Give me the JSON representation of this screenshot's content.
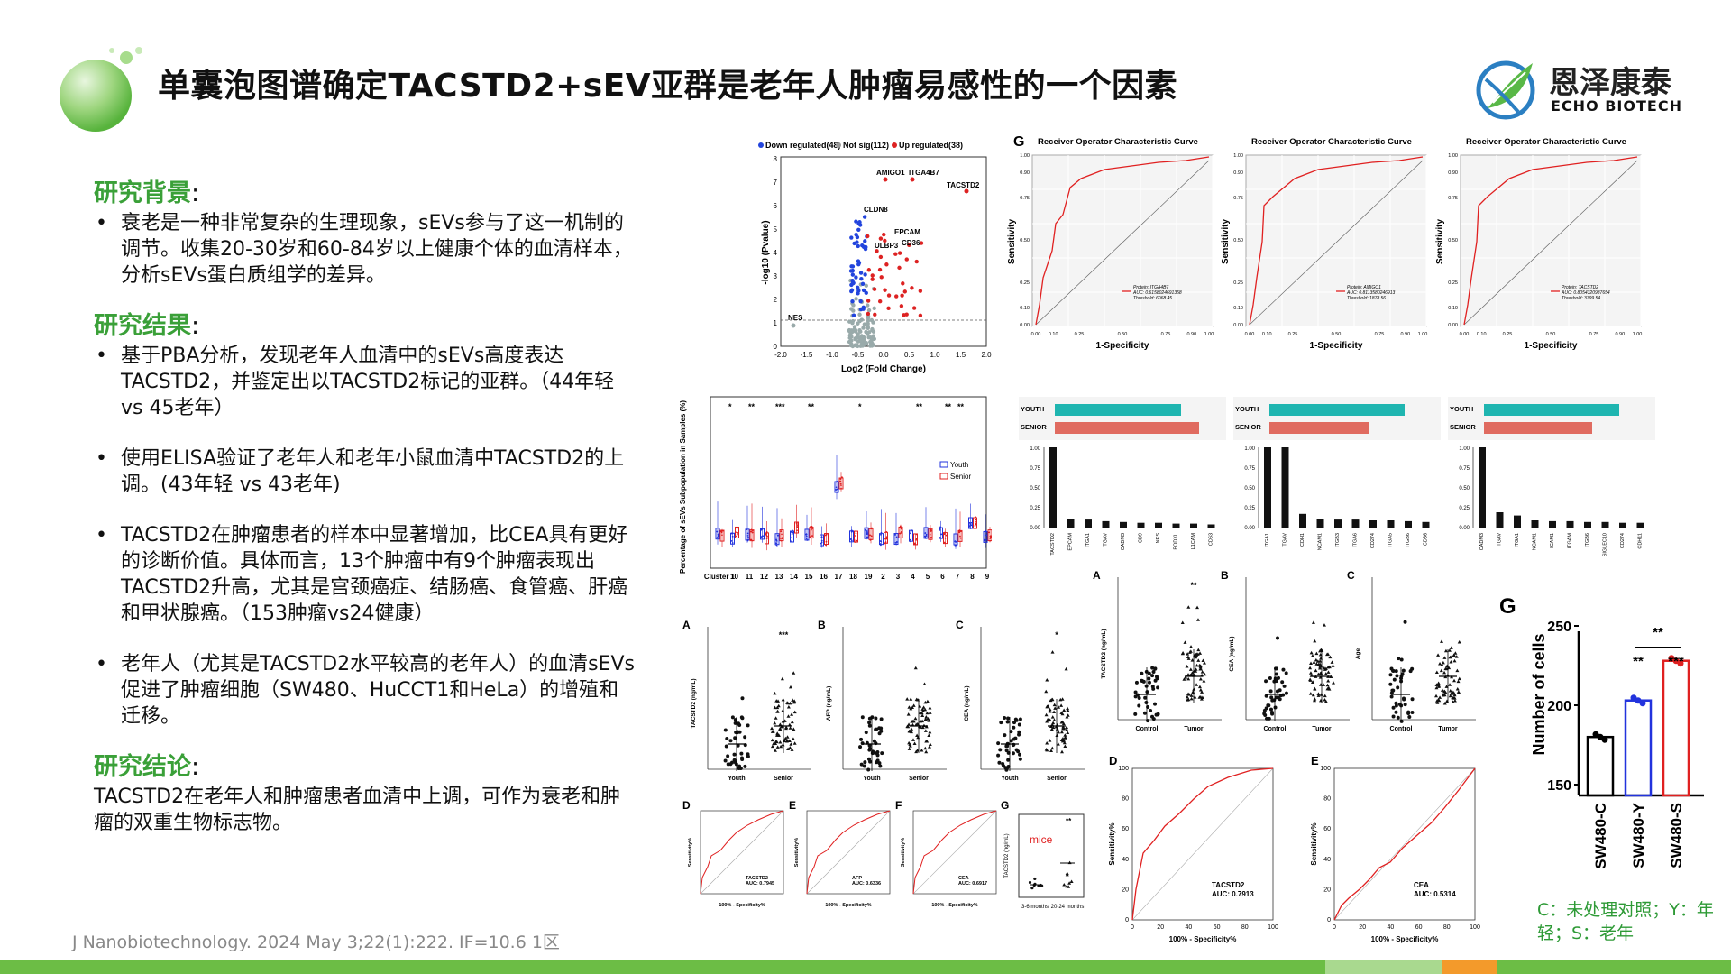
{
  "title": "单囊泡图谱确定TACSTD2+sEV亚群是老年人肿瘤易感性的一个因素",
  "brand": {
    "cn": "恩泽康泰",
    "en": "ECHO BIOTECH"
  },
  "sections": [
    {
      "heading": "研究背景",
      "colon": ":",
      "items": [
        "衰老是一种非常复杂的生理现象，sEVs参与了这一机制的调节。收集20-30岁和60-84岁以上健康个体的血清样本，分析sEVs蛋白质组学的差异。"
      ]
    },
    {
      "heading": "研究结果",
      "colon": ":",
      "items": [
        "基于PBA分析，发现老年人血清中的sEVs高度表达TACSTD2，并鉴定出以TACSTD2标记的亚群。（44年轻 vs 45老年）",
        "使用ELISA验证了老年人和老年小鼠血清中TACSTD2的上调。(43年轻 vs 43老年)",
        "TACSTD2在肿瘤患者的样本中显著增加，比CEA具有更好的诊断价值。具体而言，13个肿瘤中有9个肿瘤表现出TACSTD2升高，尤其是宫颈癌症、结肠癌、食管癌、肝癌和甲状腺癌。（153肿瘤vs24健康）",
        "老年人（尤其是TACSTD2水平较高的老年人）的血清sEVs促进了肿瘤细胞（SW480、HuCCT1和HeLa）的增殖和迁移。"
      ]
    },
    {
      "heading": "研究结论",
      "colon": ":",
      "text": "TACSTD2在老年人和肿瘤患者血清中上调，可作为衰老和肿瘤的双重生物标志物。"
    }
  ],
  "citation": "J Nanobiotechnology. 2024 May 3;22(1):222.    IF=10.6    1区",
  "volcano": {
    "legend": {
      "down": "Down regulated(48)",
      "ns": "Not sig(112)",
      "up": "Up regulated(38)"
    },
    "xlabel": "Log2 (Fold Change)",
    "ylabel": "-log10 (Pvalue)",
    "labels": [
      "AMIGO1",
      "ITGA4B7",
      "TACSTD2",
      "CLDN8",
      "EPCAM",
      "CD36",
      "ULBP3",
      "NES"
    ],
    "xticks": [
      "-2.0",
      "-1.5",
      "-1.0",
      "-0.5",
      "0.0",
      "0.5",
      "1.0",
      "1.5",
      "2.0"
    ],
    "yticks": [
      "0",
      "1",
      "2",
      "3",
      "4",
      "5",
      "6",
      "7",
      "8"
    ]
  },
  "boxplot": {
    "ylabel": "Percentage of sEVs Subpopulation in Samples (%)",
    "legend": [
      "Youth",
      "Senior"
    ],
    "clusters": [
      "Cluster 1",
      "10",
      "11",
      "12",
      "13",
      "14",
      "15",
      "16",
      "17",
      "18",
      "19",
      "2",
      "3",
      "4",
      "5",
      "6",
      "7",
      "8",
      "9"
    ]
  },
  "roc_g": {
    "panel": "G",
    "title": "Receiver Operator Characteristic Curve",
    "xlabel": "1-Specificity",
    "ylabel": "Sensitivity",
    "panels": [
      {
        "protein": "Protein: ITGA4B7",
        "auc": "AUC: 0.6158024691358",
        "thr": "Threshold: 6068.45"
      },
      {
        "protein": "Protein: AMIGO1",
        "auc": "AUC: 0.8113580246913",
        "thr": "Threshold: 1878.56"
      },
      {
        "protein": "Protein: TACSTD2",
        "auc": "AUC: 0.8054320987654",
        "thr": "Threshold: 3799.54"
      }
    ]
  },
  "hbars": {
    "youth": "YOUTH",
    "senior": "SENIOR"
  },
  "barcharts": [
    {
      "labels": [
        "TACSTD2",
        "EPCAM",
        "ITGA1",
        "ITGAV",
        "CADM3",
        "CD9",
        "NES",
        "PODXL",
        "L1CAM",
        "CD63"
      ]
    },
    {
      "labels": [
        "ITGA1",
        "ITGAV",
        "CDH1",
        "NCAM1",
        "ITGB3",
        "ITGA6",
        "CD274",
        "ITGA5",
        "ITGB6",
        "CD36"
      ]
    },
    {
      "labels": [
        "CADM3",
        "ITGAV",
        "ITGA1",
        "NCAM1",
        "ICAM1",
        "ITGAM",
        "ITGB6",
        "SIGLEC10",
        "CD274",
        "CDH11"
      ]
    }
  ],
  "scatter_left": {
    "A": {
      "ylabel": "TACSTD2 (ng/mL)",
      "groups": [
        "Youth",
        "Senior"
      ],
      "sig": "***"
    },
    "B": {
      "ylabel": "AFP (ng/mL)",
      "groups": [
        "Youth",
        "Senior"
      ]
    },
    "C": {
      "ylabel": "CEA (ng/mL)",
      "groups": [
        "Youth",
        "Senior"
      ],
      "sig": "*"
    }
  },
  "roc_small": [
    {
      "letter": "D",
      "name": "TACSTD2",
      "auc": "AUC: 0.7945"
    },
    {
      "letter": "E",
      "name": "AFP",
      "auc": "AUC: 0.6336"
    },
    {
      "letter": "F",
      "name": "CEA",
      "auc": "AUC: 0.6917"
    }
  ],
  "roc_small_axes": {
    "x": "100% - Specificity%",
    "y": "Sensitivity%"
  },
  "mice": {
    "letter": "G",
    "label": "mice",
    "groups": [
      "3-6 months",
      "20-24 months"
    ],
    "sig": "**",
    "ylabel": "TACSTD2 (ng/mL)"
  },
  "scatter_right": {
    "A": {
      "ylabel": "TACSTD2 (ng/mL)",
      "groups": [
        "Control",
        "Tumor"
      ],
      "sig": "**"
    },
    "B": {
      "ylabel": "CEA (ng/mL)",
      "groups": [
        "Control",
        "Tumor"
      ]
    },
    "C": {
      "ylabel": "Age",
      "groups": [
        "Control",
        "Tumor"
      ]
    }
  },
  "roc_big": [
    {
      "letter": "D",
      "name": "TACSTD2",
      "auc": "AUC: 0.7913"
    },
    {
      "letter": "E",
      "name": "CEA",
      "auc": "AUC: 0.5314"
    }
  ],
  "cells_chart": {
    "type": "bar",
    "panel": "G",
    "categories": [
      "SW480-C",
      "SW480-Y",
      "SW480-S"
    ],
    "values": [
      180,
      203,
      228
    ],
    "ylabel": "Number of cells",
    "ylim": [
      150,
      250
    ],
    "yticks": [
      "150",
      "200",
      "250"
    ],
    "sig_pairs": [
      "**",
      "***"
    ],
    "sig_top": "**",
    "colors": [
      "#000000",
      "#2233dd",
      "#e02020"
    ]
  },
  "note": "C：未处理对照；Y：年轻；S：老年"
}
